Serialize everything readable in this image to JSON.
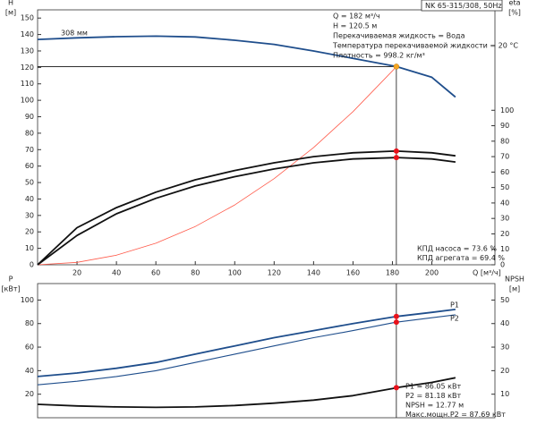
{
  "chart_data": [
    {
      "type": "line",
      "title": "NK 65-315/308, 50Hz",
      "x_label": "Q [м³/ч]",
      "y_label": [
        "H",
        "[м]"
      ],
      "y2_label": [
        "eta",
        "[%]"
      ],
      "xlim": [
        0,
        232
      ],
      "xticks": [
        20,
        40,
        60,
        80,
        100,
        120,
        140,
        160,
        180,
        200
      ],
      "ylim": [
        0,
        155
      ],
      "yticks": [
        0,
        10,
        20,
        30,
        40,
        50,
        60,
        70,
        80,
        90,
        100,
        110,
        120,
        130,
        140,
        150
      ],
      "y2lim": [
        0,
        165
      ],
      "y2ticks": [
        0,
        10,
        20,
        30,
        40,
        50,
        60,
        70,
        80,
        90,
        100
      ],
      "x": [
        0,
        20,
        40,
        60,
        80,
        100,
        120,
        140,
        160,
        180,
        182,
        200,
        212
      ],
      "series": [
        {
          "name": "308 мм",
          "color": "#1f4e8c",
          "marker_color": "#f5a623",
          "values": [
            137,
            138,
            138.7,
            139,
            138.5,
            136.5,
            134,
            130,
            125.5,
            121,
            120.5,
            114,
            102
          ]
        },
        {
          "color": "#ff5a4a",
          "values": [
            0,
            1.46,
            5.82,
            13.1,
            23.3,
            36.4,
            52.4,
            71.3,
            93.1,
            117.9,
            120.5,
            null,
            null
          ]
        },
        {
          "color": "#111111",
          "marker_color": "#e8111a",
          "axis": "y2",
          "values": [
            0,
            24,
            37,
            47,
            55,
            61,
            66,
            70,
            72.5,
            73.5,
            73.6,
            72.5,
            70.5
          ]
        },
        {
          "color": "#111111",
          "marker_color": "#e8111a",
          "axis": "y2",
          "values": [
            0,
            19,
            33,
            43,
            51,
            57,
            62,
            66,
            68.5,
            69.3,
            69.4,
            68.5,
            66.5
          ]
        }
      ],
      "duty_point": {
        "x": 182,
        "y": 120.5
      },
      "info": [
        "Q = 182 м³/ч",
        "H = 120.5 м",
        "Перекачиваемая жидкость = Вода",
        "Температура перекачиваемой жидкости = 20 °C",
        "Плотность = 998.2 кг/м³"
      ],
      "notes": [
        "КПД насоса = 73.6 %",
        "КПД агрегата = 69.4 %"
      ]
    },
    {
      "type": "line",
      "y_label": [
        "P",
        "[кВт]"
      ],
      "y2_label": [
        "NPSH",
        "[м]"
      ],
      "xlim": [
        0,
        232
      ],
      "ylim": [
        0,
        114
      ],
      "yticks": [
        20,
        40,
        60,
        80,
        100
      ],
      "y2lim": [
        0,
        57
      ],
      "y2ticks": [
        10,
        20,
        30,
        40,
        50
      ],
      "x": [
        0,
        20,
        40,
        60,
        80,
        100,
        120,
        140,
        160,
        180,
        182,
        200,
        212
      ],
      "series": [
        {
          "name": "P1",
          "color": "#1f4e8c",
          "marker_color": "#e8111a",
          "values": [
            35,
            38,
            42,
            47,
            54,
            61,
            68,
            74,
            80,
            85.5,
            86.05,
            89.5,
            92
          ]
        },
        {
          "name": "P2",
          "color": "#1f4e8c",
          "marker_color": "#e8111a",
          "values": [
            28,
            31,
            35,
            40,
            47,
            54,
            61,
            68,
            74,
            80.6,
            81.18,
            85,
            87.5
          ]
        },
        {
          "color": "#111111",
          "marker_color": "#e8111a",
          "axis": "y2",
          "values": [
            5.7,
            5,
            4.6,
            4.4,
            4.6,
            5.2,
            6.2,
            7.5,
            9.4,
            12.4,
            12.77,
            15,
            17
          ]
        }
      ],
      "notes": [
        "P1 = 86.05 кВт",
        "P2 = 81.18 кВт",
        "NPSH = 12.77 м",
        "Макс.мощн.P2 = 87.69 кВт"
      ]
    }
  ]
}
